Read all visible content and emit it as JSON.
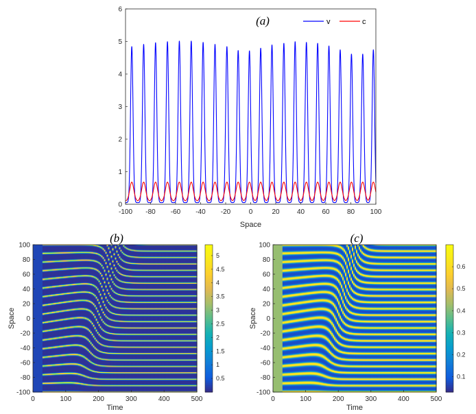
{
  "chart_data": [
    {
      "id": "a",
      "type": "line",
      "title": "(a)",
      "xlabel": "Space",
      "ylabel": "",
      "xlim": [
        -100,
        100
      ],
      "ylim": [
        0,
        6
      ],
      "xticks": [
        "-100",
        "-80",
        "-60",
        "-40",
        "-20",
        "0",
        "20",
        "40",
        "60",
        "80",
        "100"
      ],
      "yticks": [
        "0",
        "1",
        "2",
        "3",
        "4",
        "5",
        "6"
      ],
      "legend": {
        "placement": "top-right",
        "entries": [
          "v",
          "c"
        ]
      },
      "series": [
        {
          "name": "v",
          "color": "#0000ff",
          "baseline": 0.05,
          "peak_centers": [
            -95,
            -85.5,
            -76,
            -66.5,
            -57,
            -47.5,
            -38,
            -28.5,
            -19,
            -10,
            -1,
            8,
            17,
            26.5,
            35.5,
            44.5,
            53.5,
            62.5,
            71.5,
            80.5,
            89.5,
            98
          ],
          "peak_heights": [
            4.85,
            4.92,
            4.97,
            5.0,
            5.02,
            5.02,
            4.98,
            4.92,
            4.85,
            4.73,
            4.72,
            4.8,
            4.9,
            4.95,
            5.0,
            4.98,
            4.95,
            4.87,
            4.75,
            4.62,
            4.62,
            4.75
          ],
          "peak_width": 1.4
        },
        {
          "name": "c",
          "color": "#ff0000",
          "baseline": 0.1,
          "peak_centers": [
            -95,
            -85.5,
            -76,
            -66.5,
            -57,
            -47.5,
            -38,
            -28.5,
            -19,
            -10,
            -1,
            8,
            17,
            26.5,
            35.5,
            44.5,
            53.5,
            62.5,
            71.5,
            80.5,
            89.5,
            98
          ],
          "peak_height": 0.68,
          "peak_width": 2.3
        }
      ]
    },
    {
      "id": "b",
      "type": "heatmap",
      "title": "(b)",
      "xlabel": "Time",
      "ylabel": "Space",
      "xlim": [
        0,
        500
      ],
      "ylim": [
        -100,
        100
      ],
      "xticks": [
        "0",
        "100",
        "200",
        "300",
        "400",
        "500"
      ],
      "yticks": [
        "100",
        "80",
        "60",
        "40",
        "20",
        "0",
        "-20",
        "-40",
        "-60",
        "-80",
        "-100"
      ],
      "colorbar": {
        "range": [
          0,
          5.4
        ],
        "ticks": [
          "5",
          "4.5",
          "4",
          "3.5",
          "3",
          "2.5",
          "2",
          "1.5",
          "1",
          "0.5"
        ],
        "tick_values": [
          5,
          4.5,
          4,
          3.5,
          3,
          2.5,
          2,
          1.5,
          1,
          0.5
        ]
      },
      "stripe_profile": "narrow",
      "background_value": 0.1,
      "initial_band_value": 0.3,
      "initial_band_end_time": 30,
      "final_wavenumber_per_100": 11.5,
      "initial_wavenumber_per_100": 8.5,
      "transition_center_time": 200,
      "transition_slope": 0.5,
      "transition_width": 45
    },
    {
      "id": "c",
      "type": "heatmap",
      "title": "(c)",
      "xlabel": "Time",
      "ylabel": "Space",
      "xlim": [
        0,
        500
      ],
      "ylim": [
        -100,
        100
      ],
      "xticks": [
        "0",
        "100",
        "200",
        "300",
        "400",
        "500"
      ],
      "yticks": [
        "100",
        "80",
        "60",
        "40",
        "20",
        "0",
        "-20",
        "-40",
        "-60",
        "-80",
        "-100"
      ],
      "colorbar": {
        "range": [
          0.03,
          0.7
        ],
        "ticks": [
          "0.6",
          "0.5",
          "0.4",
          "0.3",
          "0.2",
          "0.1"
        ],
        "tick_values": [
          0.6,
          0.5,
          0.4,
          0.3,
          0.2,
          0.1
        ]
      },
      "stripe_profile": "wide",
      "background_value": 0.08,
      "initial_band_value": 0.42,
      "initial_band_end_time": 30,
      "final_wavenumber_per_100": 11.5,
      "initial_wavenumber_per_100": 8.5,
      "transition_center_time": 200,
      "transition_slope": 0.5,
      "transition_width": 45
    }
  ],
  "colors": {
    "v_line": "#0000ff",
    "c_line": "#ff0000",
    "axis": "#262626",
    "parula_low": "#352a87",
    "parula_high": "#f9fb0e"
  }
}
